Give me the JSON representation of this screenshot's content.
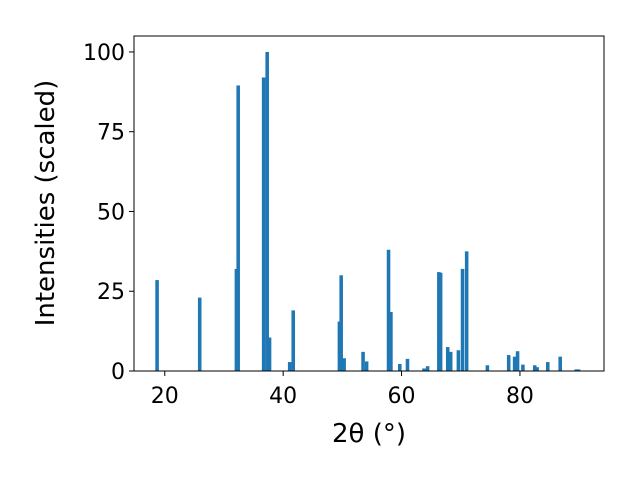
{
  "chart_data": {
    "type": "bar",
    "xlabel": "2θ (°)",
    "ylabel": "Intensities (scaled)",
    "xlim": [
      14.8,
      94.2
    ],
    "ylim": [
      0,
      105
    ],
    "xticks": [
      20,
      40,
      60,
      80
    ],
    "yticks": [
      0,
      25,
      50,
      75,
      100
    ],
    "grid": false,
    "bar_color": "#1f77b4",
    "bar_width_deg": 0.6,
    "series": [
      {
        "x": [
          18.7,
          25.9,
          32.1,
          32.4,
          36.7,
          37.3,
          37.7,
          41.1,
          41.7,
          49.5,
          49.8,
          50.3,
          53.5,
          54.1,
          57.8,
          58.2,
          59.7,
          61.0,
          63.8,
          64.4,
          66.3,
          66.6,
          67.8,
          68.3,
          69.6,
          70.3,
          71.0,
          74.5,
          78.1,
          79.1,
          79.6,
          80.5,
          82.5,
          82.9,
          84.7,
          86.8,
          89.5,
          89.9
        ],
        "values": [
          28.5,
          23.0,
          32.0,
          89.5,
          92.0,
          100.0,
          10.5,
          2.8,
          19.0,
          15.5,
          30.0,
          4.0,
          6.0,
          3.0,
          38.0,
          18.5,
          2.2,
          3.8,
          0.8,
          1.5,
          31.0,
          30.8,
          7.5,
          6.0,
          6.5,
          32.0,
          37.5,
          1.8,
          5.0,
          4.5,
          6.2,
          2.0,
          1.8,
          1.2,
          2.8,
          4.5,
          0.5,
          0.5
        ]
      }
    ]
  }
}
